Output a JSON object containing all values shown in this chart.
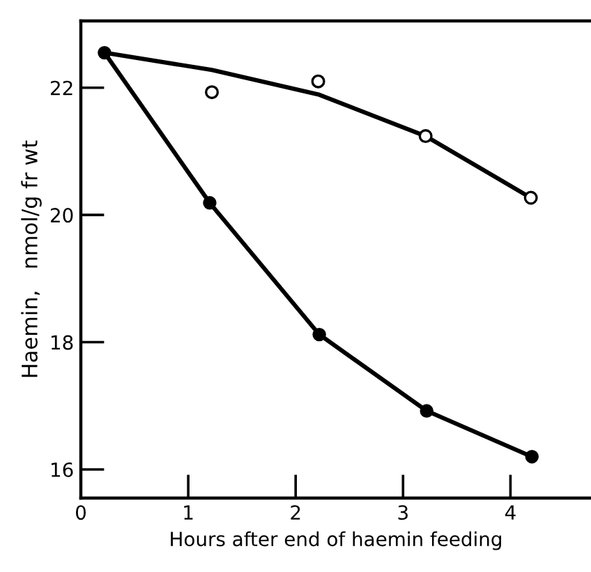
{
  "chart_data": {
    "type": "scatter",
    "xlabel": "Hours after end of haemin feeding",
    "ylabel": "Haemin,   nmol/g fr wt",
    "xlim": [
      0,
      4.75
    ],
    "ylim": [
      15.55,
      23.05
    ],
    "xticks": [
      0,
      1,
      2,
      3,
      4
    ],
    "yticks": [
      16,
      18,
      20,
      22
    ],
    "grid": false,
    "legend": false,
    "series": [
      {
        "type": "line",
        "color": "#000000",
        "marker": "circle",
        "x": [
          0.22,
          1.2,
          2.22,
          3.22,
          4.2
        ],
        "values": [
          22.55,
          20.19,
          18.12,
          16.92,
          16.2
        ]
      },
      {
        "type": "line",
        "color": "#000000",
        "marker": "none",
        "x": [
          0.22,
          1.22,
          2.22,
          3.21,
          4.19
        ],
        "values": [
          22.55,
          22.28,
          21.89,
          21.24,
          20.27
        ]
      },
      {
        "color": "#000000",
        "marker": "circle",
        "x": [
          1.22,
          2.21,
          3.21,
          4.19
        ],
        "values": [
          21.93,
          22.1,
          21.24,
          20.27
        ]
      }
    ]
  }
}
